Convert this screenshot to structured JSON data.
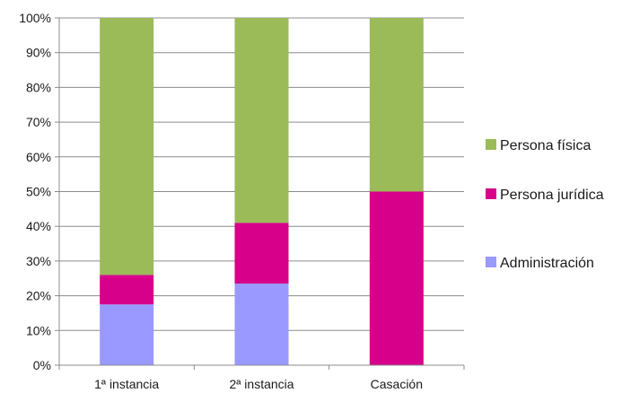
{
  "chart_data": {
    "type": "bar",
    "stacked": true,
    "percent_axis": true,
    "categories": [
      "1ª instancia",
      "2ª instancia",
      "Casación"
    ],
    "series": [
      {
        "name": "Administración",
        "values": [
          17.5,
          23.5,
          0
        ],
        "color": "#9999ff"
      },
      {
        "name": "Persona jurídica",
        "values": [
          8.5,
          17.5,
          50
        ],
        "color": "#d6008b"
      },
      {
        "name": "Persona física",
        "values": [
          74,
          59,
          50
        ],
        "color": "#9bbb59"
      }
    ],
    "yticks": [
      "0%",
      "10%",
      "20%",
      "30%",
      "40%",
      "50%",
      "60%",
      "70%",
      "80%",
      "90%",
      "100%"
    ],
    "ylim": [
      0,
      100
    ],
    "grid": true,
    "legend_position": "right",
    "legend_order": [
      "Persona física",
      "Persona jurídica",
      "Administración"
    ],
    "title": "",
    "xlabel": "",
    "ylabel": ""
  }
}
